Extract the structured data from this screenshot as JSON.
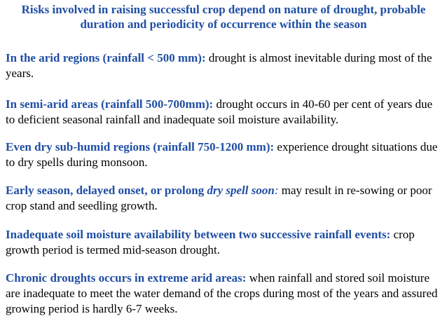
{
  "title": "Risks involved in raising successful crop depend on nature of drought, probable duration and periodicity of occurrence within the season",
  "paragraphs": [
    {
      "lead": "In the arid regions (rainfall < 500 mm):",
      "body": " drought is almost inevitable during most of the years."
    },
    {
      "lead": "In semi-arid areas (rainfall 500-700mm):",
      "body": " drought occurs in 40-60 per cent of years due to deficient seasonal rainfall and inadequate soil moisture availability."
    },
    {
      "lead": "Even dry sub-humid regions (rainfall 750-1200 mm):",
      "body": " experience drought situations due to dry spells during monsoon."
    },
    {
      "lead": "Early season, delayed onset,  or prolong ",
      "lead_italic": "dry spell soon",
      "colon": ":",
      "body": "  may result in re-sowing or poor crop stand and seedling growth."
    },
    {
      "lead": "Inadequate soil moisture availability between two successive rainfall events:",
      "body": " crop growth period is termed mid-season drought."
    },
    {
      "lead": "Chronic droughts occurs in extreme arid areas:",
      "body": "  when rainfall and stored soil moisture are inadequate to meet the water demand of the crops during most of the years and assured growing period is hardly 6-7 weeks."
    }
  ],
  "colors": {
    "accent": "#1f4ea3",
    "text": "#000000",
    "background": "#ffffff"
  }
}
